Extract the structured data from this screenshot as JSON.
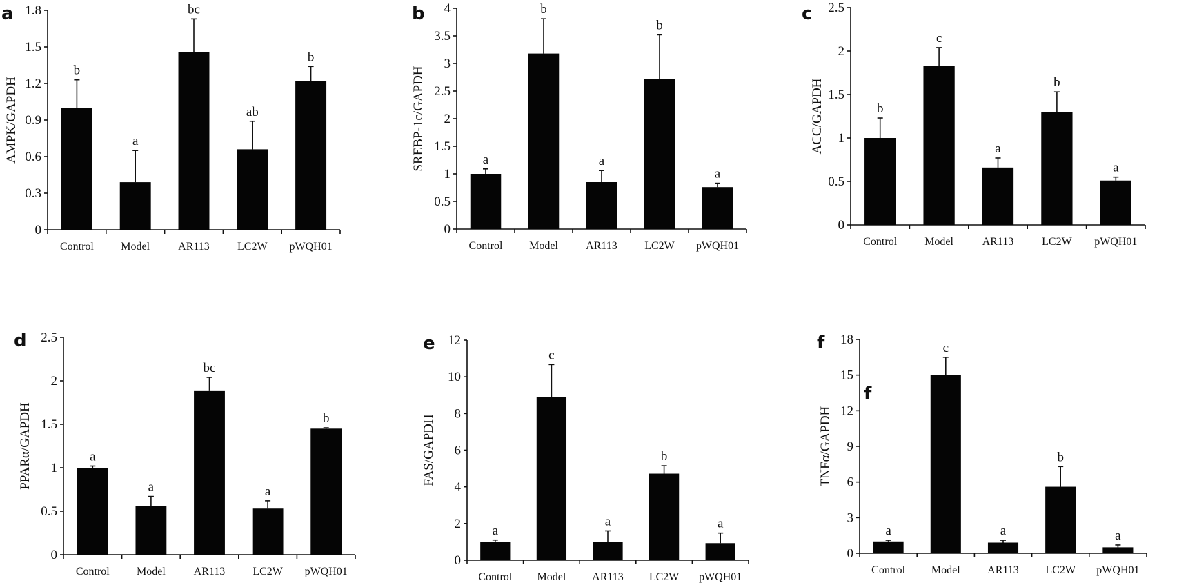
{
  "chart_data": [
    {
      "type": "bar",
      "panel": "a",
      "title": "",
      "xlabel": "",
      "ylabel": "AMPK/GAPDH",
      "categories": [
        "Control",
        "Model",
        "AR113",
        "LC2W",
        "pWQH01"
      ],
      "values": [
        1.0,
        0.39,
        1.46,
        0.66,
        1.22
      ],
      "errors": [
        0.23,
        0.26,
        0.27,
        0.23,
        0.12
      ],
      "significance": [
        "b",
        "a",
        "bc",
        "ab",
        "b"
      ],
      "ylim": [
        0,
        1.8
      ],
      "yticks": [
        "0",
        "0.3",
        "0.6",
        "0.9",
        "1.2",
        "1.5",
        "1.8"
      ],
      "grid": false
    },
    {
      "type": "bar",
      "panel": "b",
      "title": "",
      "xlabel": "",
      "ylabel": "SREBP-1c/GAPDH",
      "categories": [
        "Control",
        "Model",
        "AR113",
        "LC2W",
        "pWQH01"
      ],
      "values": [
        1.0,
        3.18,
        0.85,
        2.72,
        0.76
      ],
      "errors": [
        0.09,
        0.63,
        0.21,
        0.8,
        0.07
      ],
      "significance": [
        "a",
        "b",
        "a",
        "b",
        "a"
      ],
      "ylim": [
        0,
        4
      ],
      "yticks": [
        "0",
        "0.5",
        "1",
        "1.5",
        "2",
        "2.5",
        "3",
        "3.5",
        "4"
      ],
      "grid": false
    },
    {
      "type": "bar",
      "panel": "c",
      "title": "",
      "xlabel": "",
      "ylabel": "ACC/GAPDH",
      "categories": [
        "Control",
        "Model",
        "AR113",
        "LC2W",
        "pWQH01"
      ],
      "values": [
        1.0,
        1.83,
        0.66,
        1.3,
        0.51
      ],
      "errors": [
        0.23,
        0.21,
        0.11,
        0.23,
        0.04
      ],
      "significance": [
        "b",
        "c",
        "a",
        "b",
        "a"
      ],
      "ylim": [
        0,
        2.5
      ],
      "yticks": [
        "0",
        "0.5",
        "1",
        "1.5",
        "2",
        "2.5"
      ],
      "grid": false
    },
    {
      "type": "bar",
      "panel": "d",
      "title": "",
      "xlabel": "",
      "ylabel": "PPARα/GAPDH",
      "categories": [
        "Control",
        "Model",
        "AR113",
        "LC2W",
        "pWQH01"
      ],
      "values": [
        1.0,
        0.56,
        1.89,
        0.53,
        1.45
      ],
      "errors": [
        0.02,
        0.11,
        0.15,
        0.09,
        0.01
      ],
      "significance": [
        "a",
        "a",
        "bc",
        "a",
        "b"
      ],
      "ylim": [
        0,
        2.5
      ],
      "yticks": [
        "0",
        "0.5",
        "1",
        "1.5",
        "2",
        "2.5"
      ],
      "grid": false
    },
    {
      "type": "bar",
      "panel": "e",
      "title": "",
      "xlabel": "",
      "ylabel": "FAS/GAPDH",
      "categories": [
        "Control",
        "Model",
        "AR113",
        "LC2W",
        "pWQH01"
      ],
      "values": [
        1.0,
        8.9,
        1.0,
        4.72,
        0.93
      ],
      "errors": [
        0.1,
        1.77,
        0.6,
        0.43,
        0.55
      ],
      "significance": [
        "a",
        "c",
        "a",
        "b",
        "a"
      ],
      "ylim": [
        0,
        12
      ],
      "yticks": [
        "0",
        "2",
        "4",
        "6",
        "8",
        "10",
        "12"
      ],
      "grid": false
    },
    {
      "type": "bar",
      "panel": "f",
      "title": "",
      "xlabel": "",
      "ylabel": "TNFα/GAPDH",
      "categories": [
        "Control",
        "Model",
        "AR113",
        "LC2W",
        "pWQH01"
      ],
      "values": [
        1.0,
        15.0,
        0.9,
        5.6,
        0.5
      ],
      "errors": [
        0.1,
        1.5,
        0.2,
        1.7,
        0.2
      ],
      "significance": [
        "a",
        "c",
        "a",
        "b",
        "a"
      ],
      "ylim": [
        0,
        18
      ],
      "yticks": [
        "0",
        "3",
        "6",
        "9",
        "12",
        "15",
        "18"
      ],
      "grid": false,
      "stray_label": "f"
    }
  ]
}
